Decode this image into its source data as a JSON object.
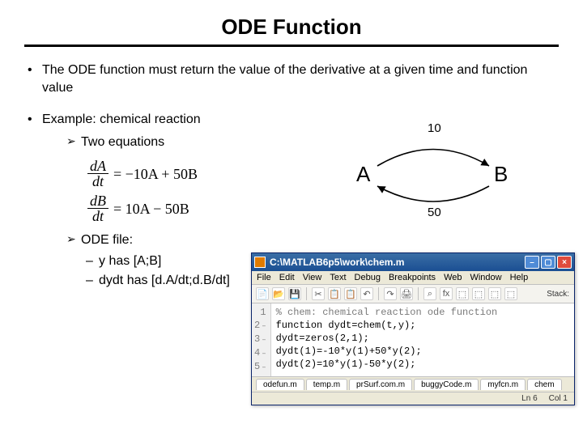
{
  "title": "ODE Function",
  "bullet1": "The ODE function must return the value of the derivative at a given time and function value",
  "bullet2": "Example: chemical reaction",
  "sub_twoeq": "Two equations",
  "sub_odefile": "ODE file:",
  "dash1": "y has [A;B]",
  "dash2": "dydt has [d.A/dt;d.B/dt]",
  "equations": {
    "eq1": {
      "num": "dA",
      "den": "dt",
      "rhs": "= −10A + 50B"
    },
    "eq2": {
      "num": "dB",
      "den": "dt",
      "rhs": "= 10A − 50B"
    }
  },
  "reaction": {
    "top_rate": "10",
    "bottom_rate": "50",
    "left_node": "A",
    "right_node": "B",
    "arrow_color": "#000000"
  },
  "matlab": {
    "titlebar": "C:\\MATLAB6p5\\work\\chem.m",
    "menu": [
      "File",
      "Edit",
      "View",
      "Text",
      "Debug",
      "Breakpoints",
      "Web",
      "Window",
      "Help"
    ],
    "stack_label": "Stack:",
    "toolbar_icons": [
      "📄",
      "📂",
      "💾",
      "✂",
      "📋",
      "📋",
      "↶",
      "↷",
      "🖨",
      "⌕",
      "fx",
      "⬚",
      "⬚",
      "⬚",
      "⬚"
    ],
    "gutter": [
      "1",
      "2",
      "3",
      "4",
      "5"
    ],
    "code_lines": [
      "% chem: chemical reaction ode function",
      "function dydt=chem(t,y);",
      "dydt=zeros(2,1);",
      "dydt(1)=-10*y(1)+50*y(2);",
      "dydt(2)=10*y(1)-50*y(2);"
    ],
    "tabs": [
      "odefun.m",
      "temp.m",
      "prSurf.com.m",
      "buggyCode.m",
      "myfcn.m",
      "chem"
    ],
    "status": {
      "ln": "Ln 6",
      "col": "Col 1"
    },
    "colors": {
      "titlebar_grad_top": "#3a6ea5",
      "titlebar_grad_bottom": "#1b4f93",
      "chrome": "#ece9d8",
      "border": "#0a246a",
      "close": "#e04b3c",
      "comment_color": "#7a7a7a"
    }
  }
}
